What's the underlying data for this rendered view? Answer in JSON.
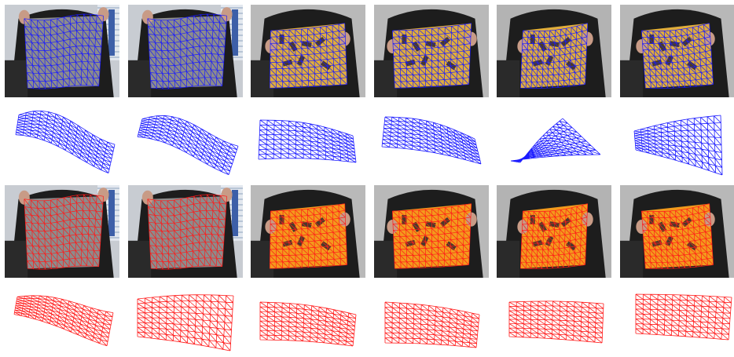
{
  "figure": {
    "columns": [
      {
        "object": "cushion",
        "photo_palette": [
          "#9a9a9a",
          "#6f6f6f",
          "#cfcfcf"
        ],
        "background": "#c8ccd2"
      },
      {
        "object": "cushion",
        "photo_palette": [
          "#9a9a9a",
          "#6f6f6f",
          "#cfcfcf"
        ],
        "background": "#c8ccd2"
      },
      {
        "object": "paper",
        "photo_palette": [
          "#d9a63a",
          "#c08a25",
          "#e9c46a"
        ],
        "background": "#b9b9b9"
      },
      {
        "object": "paper",
        "photo_palette": [
          "#d9a63a",
          "#c08a25",
          "#e9c46a"
        ],
        "background": "#b9b9b9"
      },
      {
        "object": "paper",
        "photo_palette": [
          "#e6b53a",
          "#c99322",
          "#f1cf62"
        ],
        "background": "#b3b3b3"
      },
      {
        "object": "paper",
        "photo_palette": [
          "#e6b53a",
          "#c99322",
          "#f1cf62"
        ],
        "background": "#b8b8b8"
      }
    ],
    "rows": [
      {
        "kind": "photo-overlay",
        "mesh_color": "#1a1aff"
      },
      {
        "kind": "mesh-3d",
        "mesh_color": "#1a1aff"
      },
      {
        "kind": "photo-overlay",
        "mesh_color": "#ff1a1a"
      },
      {
        "kind": "mesh-3d",
        "mesh_color": "#ff1a1a"
      }
    ],
    "colors": {
      "blue_mesh": "#1a1aff",
      "red_mesh": "#ff1a1a",
      "shirt": "#1d1d1d",
      "skin": "#c89b86",
      "paper_orange_row3": "#f39a1c",
      "paper_yellow_row1": "#e0ad3b"
    }
  }
}
